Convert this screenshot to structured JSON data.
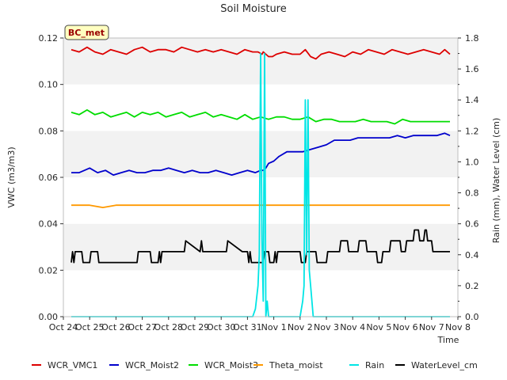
{
  "chart_data": {
    "type": "line",
    "title": "Soil Moisture",
    "xlabel": "Time",
    "ylabel_left": "VWC (m3/m3)",
    "ylabel_right": "Rain (mm), Water Level (cm)",
    "badge": "BC_met",
    "x_ticks": [
      "Oct 24",
      "Oct 25",
      "Oct 26",
      "Oct 27",
      "Oct 28",
      "Oct 29",
      "Oct 30",
      "Oct 31",
      "Nov 1",
      "Nov 2",
      "Nov 3",
      "Nov 4",
      "Nov 5",
      "Nov 6",
      "Nov 7",
      "Nov 8"
    ],
    "xlim": [
      0,
      15
    ],
    "ylim_left": [
      0,
      0.12
    ],
    "ylim_right": [
      0,
      1.8
    ],
    "y_ticks_left": [
      "0.00",
      "0.02",
      "0.04",
      "0.06",
      "0.08",
      "0.10",
      "0.12"
    ],
    "y_ticks_right": [
      "0.0",
      "0.2",
      "0.4",
      "0.6",
      "0.8",
      "1.0",
      "1.2",
      "1.4",
      "1.6",
      "1.8"
    ],
    "grid": "horizontal bands",
    "legend_position": "bottom",
    "series": [
      {
        "name": "WCR_VMC1",
        "color": "#dd0000",
        "axis": "left",
        "x": [
          0.3,
          0.6,
          0.9,
          1.2,
          1.5,
          1.8,
          2.1,
          2.4,
          2.7,
          3.0,
          3.3,
          3.6,
          3.9,
          4.2,
          4.5,
          4.8,
          5.1,
          5.4,
          5.7,
          6.0,
          6.3,
          6.6,
          6.9,
          7.2,
          7.4,
          7.55,
          7.6,
          7.7,
          7.8,
          7.85,
          7.95,
          8.1,
          8.4,
          8.7,
          9.0,
          9.2,
          9.4,
          9.6,
          9.8,
          10.1,
          10.4,
          10.7,
          11.0,
          11.3,
          11.6,
          11.9,
          12.2,
          12.5,
          12.8,
          13.1,
          13.4,
          13.7,
          14.0,
          14.3,
          14.5,
          14.7
        ],
        "y": [
          0.115,
          0.114,
          0.116,
          0.114,
          0.113,
          0.115,
          0.114,
          0.113,
          0.115,
          0.116,
          0.114,
          0.115,
          0.115,
          0.114,
          0.116,
          0.115,
          0.114,
          0.115,
          0.114,
          0.115,
          0.114,
          0.113,
          0.115,
          0.114,
          0.114,
          0.113,
          0.114,
          0.113,
          0.112,
          0.112,
          0.112,
          0.113,
          0.114,
          0.113,
          0.113,
          0.115,
          0.112,
          0.111,
          0.113,
          0.114,
          0.113,
          0.112,
          0.114,
          0.113,
          0.115,
          0.114,
          0.113,
          0.115,
          0.114,
          0.113,
          0.114,
          0.115,
          0.114,
          0.113,
          0.115,
          0.113
        ]
      },
      {
        "name": "WCR_Moist2",
        "color": "#0000cc",
        "axis": "left",
        "x": [
          0.3,
          0.6,
          0.8,
          1.0,
          1.3,
          1.6,
          1.9,
          2.2,
          2.5,
          2.8,
          3.1,
          3.4,
          3.7,
          4.0,
          4.3,
          4.6,
          4.9,
          5.2,
          5.5,
          5.8,
          6.1,
          6.4,
          6.7,
          7.0,
          7.3,
          7.5,
          7.6,
          7.7,
          7.8,
          8.0,
          8.2,
          8.5,
          8.8,
          9.1,
          9.4,
          9.7,
          10.0,
          10.3,
          10.6,
          10.9,
          11.2,
          11.5,
          11.8,
          12.1,
          12.4,
          12.7,
          13.0,
          13.3,
          13.6,
          13.9,
          14.2,
          14.5,
          14.7
        ],
        "y": [
          0.062,
          0.062,
          0.063,
          0.064,
          0.062,
          0.063,
          0.061,
          0.062,
          0.063,
          0.062,
          0.062,
          0.063,
          0.063,
          0.064,
          0.063,
          0.062,
          0.063,
          0.062,
          0.062,
          0.063,
          0.062,
          0.061,
          0.062,
          0.063,
          0.062,
          0.063,
          0.063,
          0.064,
          0.066,
          0.067,
          0.069,
          0.071,
          0.071,
          0.071,
          0.072,
          0.073,
          0.074,
          0.076,
          0.076,
          0.076,
          0.077,
          0.077,
          0.077,
          0.077,
          0.077,
          0.078,
          0.077,
          0.078,
          0.078,
          0.078,
          0.078,
          0.079,
          0.078
        ]
      },
      {
        "name": "WCR_Moist3",
        "color": "#00dd00",
        "axis": "left",
        "x": [
          0.3,
          0.6,
          0.9,
          1.2,
          1.5,
          1.8,
          2.1,
          2.4,
          2.7,
          3.0,
          3.3,
          3.6,
          3.9,
          4.2,
          4.5,
          4.8,
          5.1,
          5.4,
          5.7,
          6.0,
          6.3,
          6.6,
          6.9,
          7.2,
          7.5,
          7.8,
          8.1,
          8.4,
          8.7,
          9.0,
          9.3,
          9.6,
          9.9,
          10.2,
          10.5,
          10.8,
          11.1,
          11.4,
          11.7,
          12.0,
          12.3,
          12.6,
          12.9,
          13.2,
          13.5,
          13.8,
          14.1,
          14.4,
          14.7
        ],
        "y": [
          0.088,
          0.087,
          0.089,
          0.087,
          0.088,
          0.086,
          0.087,
          0.088,
          0.086,
          0.088,
          0.087,
          0.088,
          0.086,
          0.087,
          0.088,
          0.086,
          0.087,
          0.088,
          0.086,
          0.087,
          0.086,
          0.085,
          0.087,
          0.085,
          0.086,
          0.085,
          0.086,
          0.086,
          0.085,
          0.085,
          0.086,
          0.084,
          0.085,
          0.085,
          0.084,
          0.084,
          0.084,
          0.085,
          0.084,
          0.084,
          0.084,
          0.083,
          0.085,
          0.084,
          0.084,
          0.084,
          0.084,
          0.084,
          0.084
        ]
      },
      {
        "name": "Theta_moist",
        "color": "#ff9900",
        "axis": "left",
        "x": [
          0.3,
          1.0,
          1.5,
          2.0,
          3.0,
          4.0,
          5.0,
          6.0,
          7.0,
          8.0,
          9.0,
          10.0,
          11.0,
          12.0,
          13.0,
          14.0,
          14.7
        ],
        "y": [
          0.048,
          0.048,
          0.047,
          0.048,
          0.048,
          0.048,
          0.048,
          0.048,
          0.048,
          0.048,
          0.048,
          0.048,
          0.048,
          0.048,
          0.048,
          0.048,
          0.048
        ]
      },
      {
        "name": "Rain",
        "color": "#00e5e5",
        "axis": "right",
        "x": [
          0.3,
          7.2,
          7.3,
          7.4,
          7.45,
          7.5,
          7.55,
          7.6,
          7.65,
          7.7,
          7.75,
          7.8,
          8.0,
          9.0,
          9.1,
          9.15,
          9.2,
          9.25,
          9.3,
          9.35,
          9.4,
          9.5,
          9.6,
          14.7
        ],
        "y": [
          0.0,
          0.0,
          0.05,
          0.2,
          0.4,
          1.7,
          0.5,
          0.1,
          1.7,
          0.0,
          0.1,
          0.0,
          0.0,
          0.0,
          0.1,
          0.2,
          1.4,
          0.4,
          1.4,
          0.3,
          0.2,
          0.0,
          0.0,
          0.0
        ]
      },
      {
        "name": "WaterLevel_cm",
        "color": "#000000",
        "axis": "right",
        "x": [
          0.3,
          0.35,
          0.4,
          0.45,
          0.7,
          0.75,
          1.0,
          1.05,
          1.3,
          1.35,
          1.8,
          1.85,
          2.3,
          2.35,
          2.8,
          2.85,
          3.3,
          3.35,
          3.6,
          3.65,
          3.7,
          3.75,
          4.0,
          4.05,
          4.6,
          4.65,
          5.2,
          5.25,
          5.3,
          5.35,
          6.2,
          6.25,
          6.8,
          6.85,
          7.0,
          7.05,
          7.1,
          7.15,
          7.6,
          7.65,
          7.8,
          7.85,
          8.0,
          8.05,
          8.1,
          8.15,
          9.0,
          9.05,
          9.2,
          9.25,
          9.6,
          9.65,
          10.0,
          10.05,
          10.5,
          10.55,
          10.8,
          10.85,
          11.2,
          11.25,
          11.5,
          11.55,
          11.9,
          11.95,
          12.1,
          12.15,
          12.4,
          12.45,
          12.8,
          12.85,
          13.0,
          13.05,
          13.3,
          13.35,
          13.5,
          13.55,
          13.7,
          13.75,
          13.8,
          13.85,
          14.0,
          14.05,
          14.2,
          14.25,
          14.7
        ],
        "y": [
          0.35,
          0.42,
          0.35,
          0.42,
          0.42,
          0.35,
          0.35,
          0.42,
          0.42,
          0.35,
          0.35,
          0.35,
          0.35,
          0.35,
          0.35,
          0.42,
          0.42,
          0.35,
          0.35,
          0.42,
          0.35,
          0.42,
          0.42,
          0.42,
          0.42,
          0.49,
          0.42,
          0.49,
          0.42,
          0.42,
          0.42,
          0.49,
          0.42,
          0.42,
          0.42,
          0.35,
          0.42,
          0.35,
          0.35,
          0.42,
          0.42,
          0.35,
          0.35,
          0.42,
          0.35,
          0.42,
          0.42,
          0.35,
          0.35,
          0.42,
          0.42,
          0.35,
          0.35,
          0.42,
          0.42,
          0.49,
          0.49,
          0.42,
          0.42,
          0.49,
          0.49,
          0.42,
          0.42,
          0.35,
          0.35,
          0.42,
          0.42,
          0.49,
          0.49,
          0.42,
          0.42,
          0.49,
          0.49,
          0.56,
          0.56,
          0.49,
          0.49,
          0.56,
          0.56,
          0.49,
          0.49,
          0.42,
          0.42,
          0.42,
          0.42
        ]
      }
    ]
  }
}
